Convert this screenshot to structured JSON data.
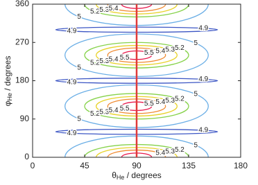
{
  "chart_data": {
    "type": "contour",
    "xlabel": {
      "symbol": "θ",
      "subscript": "He",
      "unit": " / degrees"
    },
    "ylabel": {
      "symbol": "φ",
      "subscript": "He",
      "unit": " / degrees"
    },
    "xlim": [
      0,
      180
    ],
    "ylim": [
      0,
      360
    ],
    "xticks": [
      0,
      45,
      90,
      135,
      180
    ],
    "yticks": [
      0,
      90,
      180,
      270,
      360
    ],
    "vline": {
      "x": 90,
      "color": "#e03a3a"
    },
    "contours": [
      {
        "level": 4.9,
        "color": "#3b55c4",
        "centers": [
          [
            90,
            60
          ],
          [
            90,
            180
          ],
          [
            90,
            300
          ]
        ],
        "radii": [
          70,
          6
        ]
      },
      {
        "level": 5,
        "color": "#6aaee6",
        "centers": [
          [
            90,
            0
          ],
          [
            90,
            120
          ],
          [
            90,
            240
          ],
          [
            90,
            360
          ]
        ],
        "radii": [
          62,
          50
        ]
      },
      {
        "level": 5.2,
        "color": "#86d24a",
        "centers": [
          [
            90,
            0
          ],
          [
            90,
            120
          ],
          [
            90,
            240
          ],
          [
            90,
            360
          ]
        ],
        "radii": [
          45,
          30
        ]
      },
      {
        "level": 5.3,
        "color": "#e8d22a",
        "centers": [
          [
            90,
            0
          ],
          [
            90,
            120
          ],
          [
            90,
            240
          ],
          [
            90,
            360
          ]
        ],
        "radii": [
          35,
          23
        ]
      },
      {
        "level": 5.4,
        "color": "#f08a30",
        "centers": [
          [
            90,
            0
          ],
          [
            90,
            120
          ],
          [
            90,
            240
          ],
          [
            90,
            360
          ]
        ],
        "radii": [
          25,
          17
        ]
      },
      {
        "level": 5.5,
        "color": "#e8174b",
        "centers": [
          [
            90,
            0
          ],
          [
            90,
            120
          ],
          [
            90,
            240
          ],
          [
            90,
            360
          ]
        ],
        "radii": [
          13,
          10
        ]
      }
    ]
  }
}
